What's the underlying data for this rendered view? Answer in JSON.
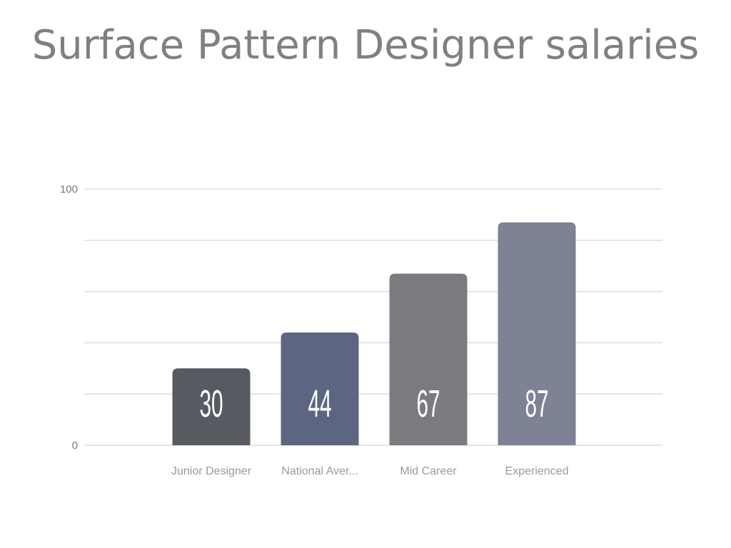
{
  "title": "Surface Pattern Designer salaries",
  "chart_data": {
    "type": "bar",
    "title": "Surface Pattern Designer salaries",
    "categories": [
      "Junior Designer",
      "National Aver...",
      "Mid Career",
      "Experienced"
    ],
    "values": [
      30,
      44,
      67,
      87
    ],
    "colors": [
      "#575a61",
      "#5d6680",
      "#7b7a7f",
      "#7d8294"
    ],
    "ylim": [
      0,
      100
    ],
    "yticks": [
      "0",
      "100"
    ],
    "grid": true,
    "xlabel": "",
    "ylabel": ""
  }
}
